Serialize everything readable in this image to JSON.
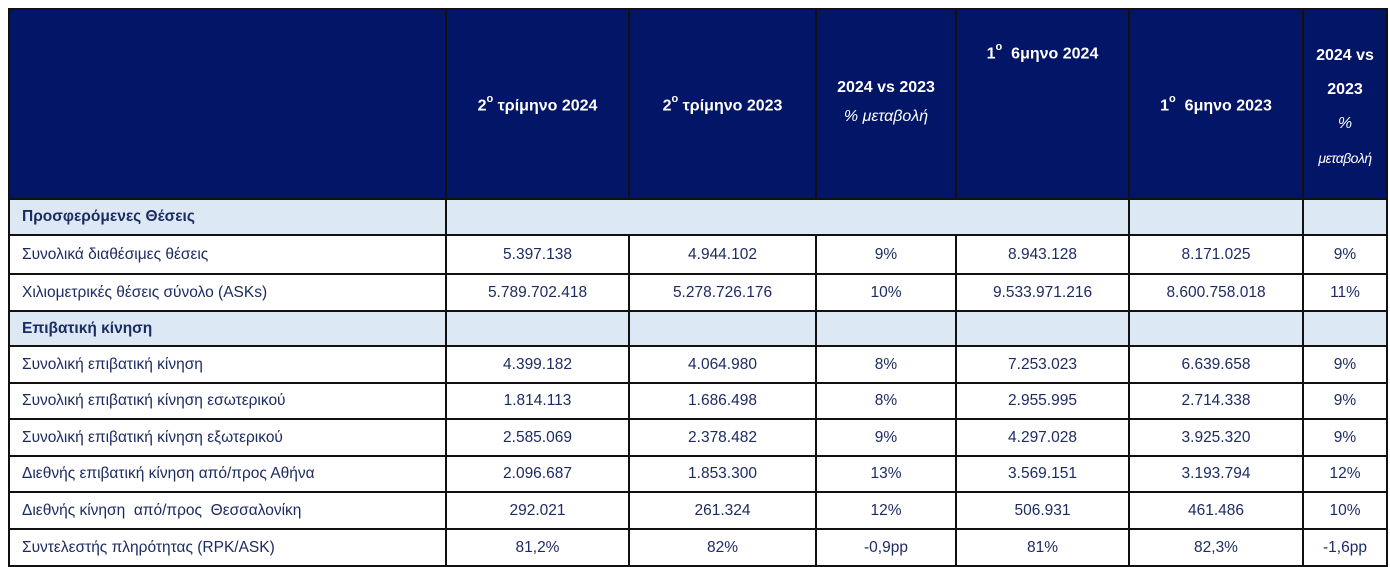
{
  "header": {
    "q2_2024": {
      "num": "2",
      "sup": "ο",
      "rest": " τρίμηνο 2024"
    },
    "q2_2023": {
      "num": "2",
      "sup": "ο",
      "rest": " τρίμηνο 2023"
    },
    "q_change": {
      "line1": "2024 vs 2023",
      "line2": "% μεταβολή"
    },
    "h1_2024": {
      "num": "1",
      "sup": "ο",
      "rest": "  6μηνο 2024"
    },
    "h1_2023": {
      "num": "1",
      "sup": "ο",
      "rest": "  6μηνο 2023"
    },
    "h_change": {
      "line1": "2024 vs",
      "line2": "2023",
      "line3": "%",
      "line4": "μεταβολή"
    }
  },
  "sections": [
    {
      "title": "Προσφερόμενες Θέσεις",
      "rows": [
        {
          "label": "Συνολικά διαθέσιμες θέσεις",
          "values": [
            "5.397.138",
            "4.944.102",
            "9%",
            "8.943.128",
            "8.171.025",
            "9%"
          ]
        },
        {
          "label": "Χιλιομετρικές θέσεις σύνολο (ASKs)",
          "values": [
            "5.789.702.418",
            "5.278.726.176",
            "10%",
            "9.533.971.216",
            "8.600.758.018",
            "11%"
          ]
        }
      ]
    },
    {
      "title": "Επιβατική κίνηση",
      "rows": [
        {
          "label": "Συνολική επιβατική κίνηση",
          "values": [
            "4.399.182",
            "4.064.980",
            "8%",
            "7.253.023",
            "6.639.658",
            "9%"
          ]
        },
        {
          "label": "Συνολική επιβατική κίνηση εσωτερικού",
          "values": [
            "1.814.113",
            "1.686.498",
            "8%",
            "2.955.995",
            "2.714.338",
            "9%"
          ]
        },
        {
          "label": "Συνολική επιβατική κίνηση εξωτερικού",
          "values": [
            "2.585.069",
            "2.378.482",
            "9%",
            "4.297.028",
            "3.925.320",
            "9%"
          ]
        },
        {
          "label": "Διεθνής επιβατική κίνηση από/προς Αθήνα",
          "values": [
            "2.096.687",
            "1.853.300",
            "13%",
            "3.569.151",
            "3.193.794",
            "12%"
          ]
        },
        {
          "label": "Διεθνής κίνηση  από/προς  Θεσσαλονίκη",
          "values": [
            "292.021",
            "261.324",
            "12%",
            "506.931",
            "461.486",
            "10%"
          ]
        },
        {
          "label": "Συντελεστής πληρότητας (RPK/ASK)",
          "values": [
            "81,2%",
            "82%",
            "-0,9pp",
            "81%",
            "82,3%",
            "-1,6pp"
          ]
        }
      ]
    }
  ]
}
